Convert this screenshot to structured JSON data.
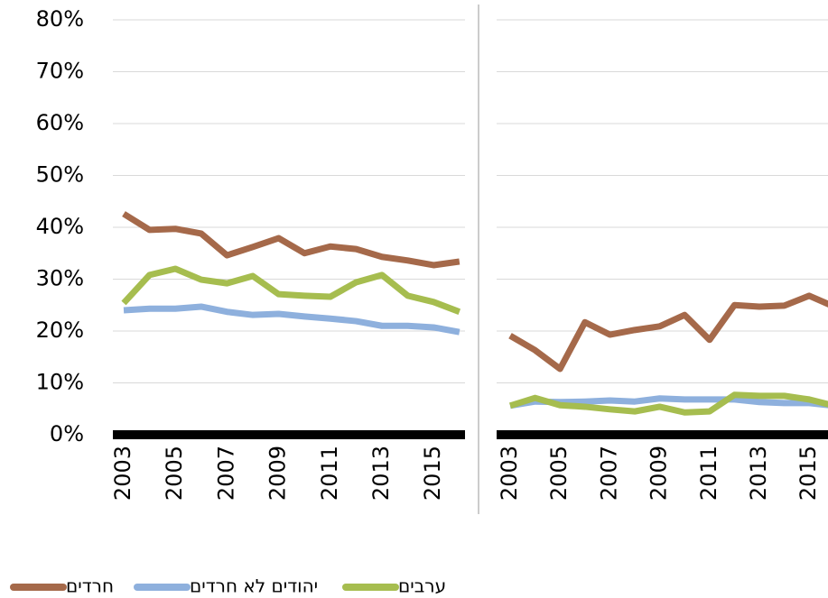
{
  "chart_data": {
    "type": "line",
    "ylim": [
      0,
      80
    ],
    "yticks": [
      {
        "value": 0,
        "label": "0%"
      },
      {
        "value": 10,
        "label": "10%"
      },
      {
        "value": 20,
        "label": "20%"
      },
      {
        "value": 30,
        "label": "30%"
      },
      {
        "value": 40,
        "label": "40%"
      },
      {
        "value": 50,
        "label": "50%"
      },
      {
        "value": 60,
        "label": "60%"
      },
      {
        "value": 70,
        "label": "70%"
      },
      {
        "value": 80,
        "label": "80%"
      }
    ],
    "legend": [
      {
        "name": "חרדים",
        "color": "#a5694a"
      },
      {
        "name": "יהודים לא חרדים",
        "color": "#8eb0dd"
      },
      {
        "name": "ערבים",
        "color": "#a6bd4f"
      }
    ],
    "panels": [
      {
        "categories": [
          "2003",
          null,
          "2005",
          null,
          "2007",
          null,
          "2009",
          null,
          "2011",
          null,
          "2013",
          null,
          "2015",
          null
        ],
        "series": [
          {
            "values": [
              42.6,
              39.5,
              39.7,
              38.8,
              34.6,
              36.2,
              37.9,
              35.0,
              36.3,
              35.8,
              34.3,
              33.6,
              32.7,
              33.4
            ]
          },
          {
            "values": [
              24.0,
              24.3,
              24.3,
              24.7,
              23.7,
              23.1,
              23.3,
              22.8,
              22.4,
              21.9,
              21.0,
              21.0,
              20.7,
              19.8
            ]
          },
          {
            "values": [
              25.4,
              30.8,
              32.0,
              29.9,
              29.2,
              30.6,
              27.1,
              26.8,
              26.6,
              29.4,
              30.8,
              26.8,
              25.6,
              23.7
            ]
          }
        ]
      },
      {
        "categories": [
          "2003",
          null,
          "2005",
          null,
          "2007",
          null,
          "2009",
          null,
          "2011",
          null,
          "2013",
          null,
          "2015",
          null
        ],
        "series": [
          {
            "values": [
              19.1,
              16.3,
              12.7,
              21.7,
              19.3,
              20.2,
              20.9,
              23.1,
              18.3,
              25.0,
              24.7,
              24.9,
              26.8,
              24.7
            ]
          },
          {
            "values": [
              5.6,
              6.4,
              6.3,
              6.4,
              6.6,
              6.4,
              7.0,
              6.8,
              6.8,
              6.8,
              6.3,
              6.1,
              6.1,
              5.6
            ]
          },
          {
            "values": [
              5.6,
              7.1,
              5.7,
              5.4,
              4.9,
              4.5,
              5.4,
              4.3,
              4.5,
              7.7,
              7.5,
              7.5,
              6.8,
              5.6
            ]
          }
        ]
      }
    ]
  }
}
